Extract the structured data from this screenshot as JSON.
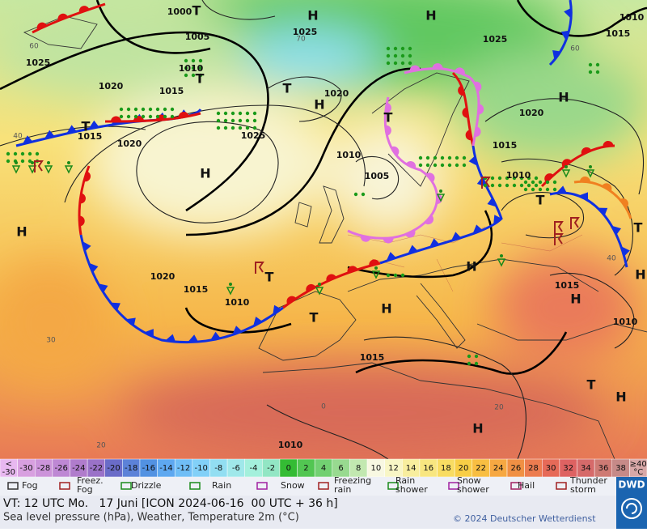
{
  "map": {
    "pressure_labels": [
      "1000",
      "1005",
      "1025",
      "1020",
      "1015",
      "1010",
      "1025",
      "1020",
      "1025",
      "1020",
      "1010",
      "1005",
      "1015",
      "1010",
      "1015",
      "1020",
      "1025",
      "1020",
      "1015",
      "1010",
      "1015",
      "1015",
      "1010",
      "1010",
      "1010",
      "1015"
    ],
    "centers": [
      "H",
      "H",
      "T",
      "T",
      "T",
      "H",
      "T",
      "H",
      "H",
      "H",
      "T",
      "T",
      "H",
      "H",
      "T",
      "T",
      "H",
      "T",
      "H",
      "T",
      "H",
      "H"
    ],
    "graticule_labels": [
      "60",
      "70",
      "60",
      "40",
      "40",
      "30",
      "20",
      "0",
      "20"
    ]
  },
  "temperature_scale": {
    "low": [
      "<",
      "-30"
    ],
    "steps": [
      {
        "label": "-30",
        "color": "#d8a0e0"
      },
      {
        "label": "-28",
        "color": "#cc94da"
      },
      {
        "label": "-26",
        "color": "#be88d4"
      },
      {
        "label": "-24",
        "color": "#b07ccc"
      },
      {
        "label": "-22",
        "color": "#9a72c8"
      },
      {
        "label": "-20",
        "color": "#6a6cc8"
      },
      {
        "label": "-18",
        "color": "#5c82d8"
      },
      {
        "label": "-16",
        "color": "#5292e2"
      },
      {
        "label": "-14",
        "color": "#5ea8f0"
      },
      {
        "label": "-12",
        "color": "#70bef6"
      },
      {
        "label": "-10",
        "color": "#82d0f8"
      },
      {
        "label": "-8",
        "color": "#92def2"
      },
      {
        "label": "-6",
        "color": "#a0e8ea"
      },
      {
        "label": "-4",
        "color": "#a4f0dc"
      },
      {
        "label": "-2",
        "color": "#92e6c4"
      },
      {
        "label": "0",
        "color": "#34bc34"
      },
      {
        "label": "2",
        "color": "#52c652"
      },
      {
        "label": "4",
        "color": "#72d072"
      },
      {
        "label": "6",
        "color": "#98da90"
      },
      {
        "label": "8",
        "color": "#c2e8b0"
      },
      {
        "label": "10",
        "color": "#f8f8e2"
      },
      {
        "label": "12",
        "color": "#f8f6c6"
      },
      {
        "label": "14",
        "color": "#f8ee9e"
      },
      {
        "label": "16",
        "color": "#f8e680"
      },
      {
        "label": "18",
        "color": "#f8dc62"
      },
      {
        "label": "20",
        "color": "#f8ce46"
      },
      {
        "label": "22",
        "color": "#f8be42"
      },
      {
        "label": "24",
        "color": "#f6a842"
      },
      {
        "label": "26",
        "color": "#f09044"
      },
      {
        "label": "28",
        "color": "#ec7c50"
      },
      {
        "label": "30",
        "color": "#e66a58"
      },
      {
        "label": "32",
        "color": "#de6262"
      },
      {
        "label": "34",
        "color": "#d66a6a"
      },
      {
        "label": "36",
        "color": "#ce7a74"
      },
      {
        "label": "38",
        "color": "#c68a88"
      }
    ],
    "high": [
      "≥40",
      "°C"
    ]
  },
  "weather_legend": [
    {
      "lines": [
        "Fog"
      ]
    },
    {
      "lines": [
        "Freez.",
        "Fog"
      ]
    },
    {
      "lines": [
        "Drizzle"
      ]
    },
    {
      "lines": [
        "Rain"
      ]
    },
    {
      "lines": [
        "Snow"
      ]
    },
    {
      "lines": [
        "Freezing",
        "rain"
      ]
    },
    {
      "lines": [
        "Rain",
        "shower"
      ]
    },
    {
      "lines": [
        "Snow",
        "shower"
      ]
    },
    {
      "lines": [
        "Hail"
      ]
    },
    {
      "lines": [
        "Thunder",
        "storm"
      ]
    }
  ],
  "footer": {
    "valid_time": "VT: 12 UTC Mo.   17 Juni [ICON 2024-06-16  00 UTC + 36 h]",
    "description": "Sea level pressure (hPa), Weather, Temperature 2m (°C)",
    "copyright": "© 2024 Deutscher Wetterdienst",
    "logo": "DWD"
  }
}
